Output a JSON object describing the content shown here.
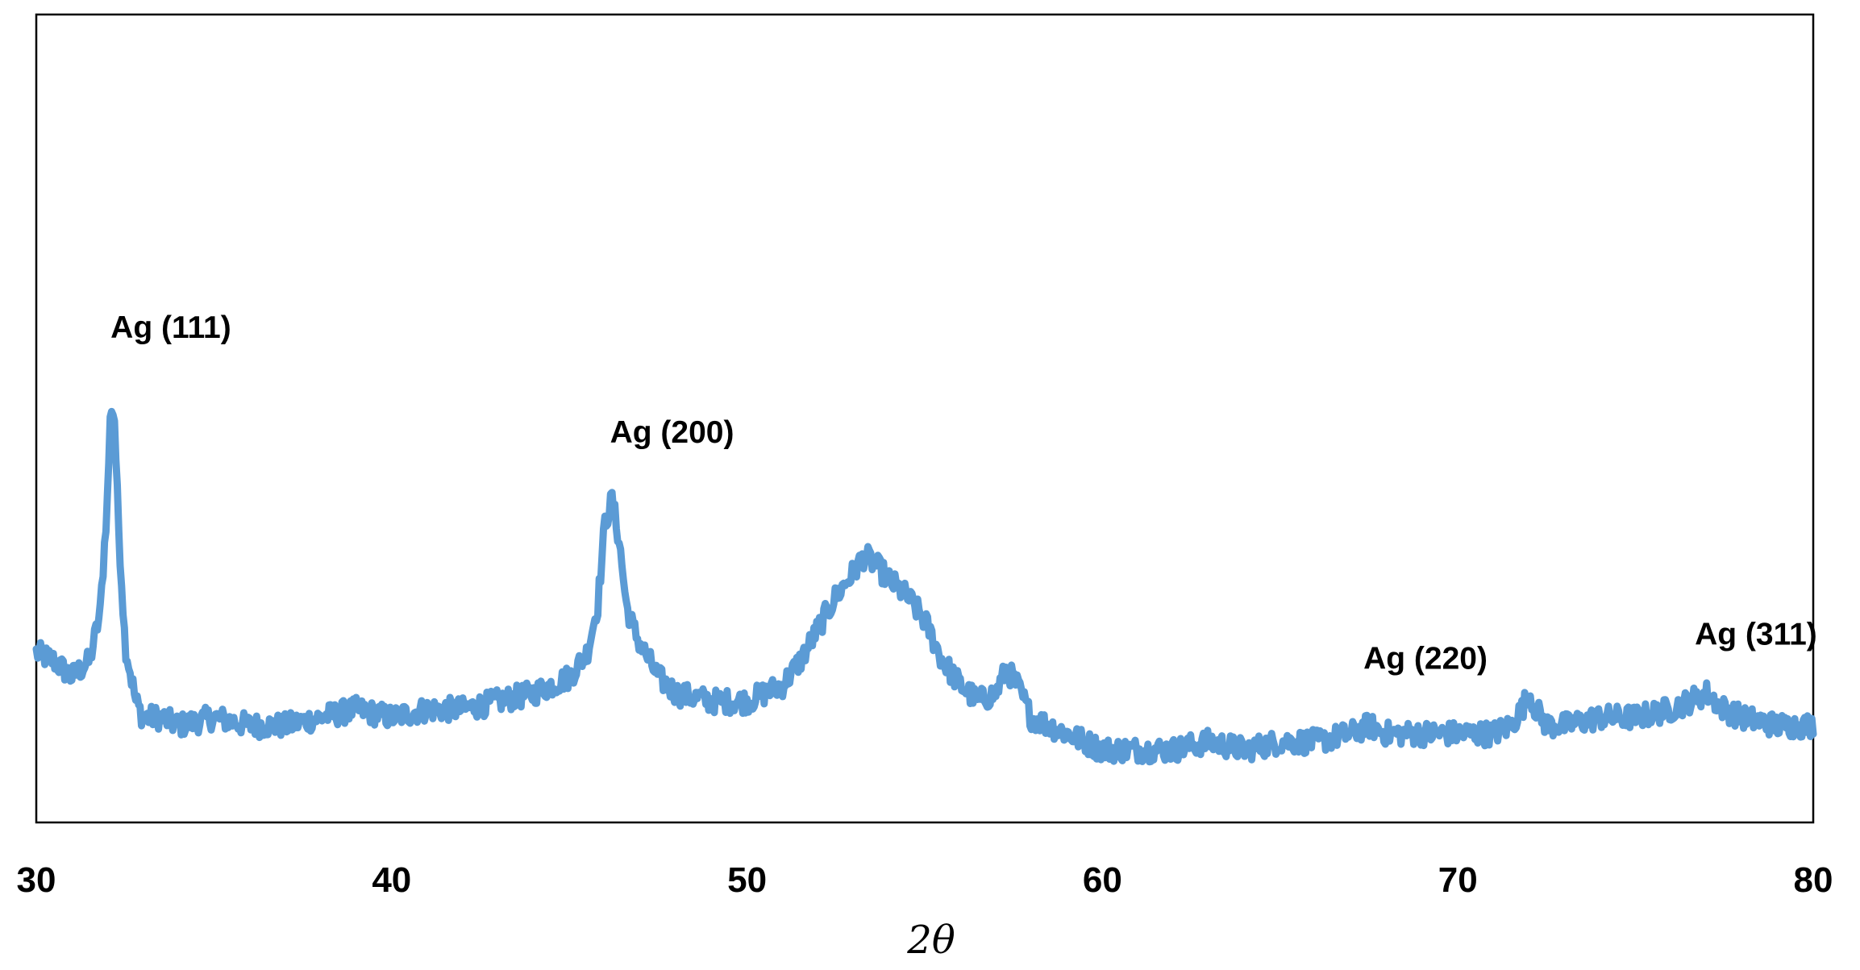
{
  "chart_data": {
    "type": "line",
    "title": "",
    "xlabel": "2θ",
    "ylabel": "",
    "xlim": [
      30,
      80
    ],
    "ylim": [
      0,
      100
    ],
    "x_ticks": [
      "30",
      "40",
      "50",
      "60",
      "70",
      "80"
    ],
    "y_ticks": [],
    "grid": false,
    "legend": "none",
    "series": [
      {
        "color": "#5b9bd5",
        "x": [
          30,
          30.5,
          31,
          31.5,
          31.8,
          32,
          32.1,
          32.2,
          32.3,
          32.5,
          32.8,
          33,
          33.5,
          34,
          35,
          36,
          37,
          38,
          39,
          40,
          41,
          42,
          43,
          44,
          45,
          45.5,
          45.8,
          46,
          46.2,
          46.4,
          46.6,
          46.8,
          47,
          47.5,
          48,
          49,
          50,
          51,
          51.5,
          52,
          52.5,
          53,
          53.3,
          53.6,
          54,
          54.5,
          55,
          55.5,
          56,
          56.5,
          57,
          57.3,
          57.6,
          58,
          59,
          60,
          61,
          62,
          63,
          64,
          65,
          66,
          67,
          67.5,
          68,
          69,
          70,
          71,
          71.5,
          71.8,
          72,
          72.2,
          72.5,
          73,
          74,
          75,
          76,
          76.5,
          77,
          77.5,
          78,
          79,
          80
        ],
        "y": [
          21,
          20,
          18,
          20,
          26,
          40,
          52,
          50,
          38,
          22,
          15,
          13,
          13,
          12,
          13,
          12,
          12,
          13,
          14,
          13,
          14,
          14,
          15,
          16,
          18,
          21,
          27,
          37,
          40,
          35,
          27,
          24,
          22,
          18,
          16,
          15,
          15,
          17,
          20,
          24,
          28,
          31,
          33,
          32,
          30,
          28,
          25,
          20,
          17,
          15,
          16,
          19,
          17,
          13,
          11,
          9,
          9,
          9,
          10,
          9,
          10,
          10,
          11,
          12,
          11,
          11,
          11,
          11,
          12,
          14,
          16,
          14,
          12,
          12,
          13,
          13,
          14,
          15,
          16,
          14,
          13,
          12,
          12
        ]
      }
    ],
    "annotations": [
      {
        "text": "Ag (111)",
        "x": 32.2,
        "y": 60
      },
      {
        "text": "Ag (200)",
        "x": 46.3,
        "y": 47
      },
      {
        "text": "Ag (220)",
        "x": 67.5,
        "y": 19
      },
      {
        "text": "Ag (311)",
        "x": 76.8,
        "y": 22
      }
    ]
  }
}
